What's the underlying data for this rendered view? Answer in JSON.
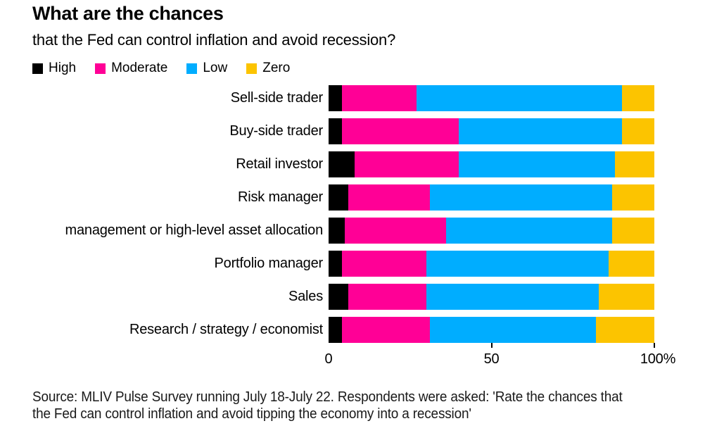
{
  "header": {
    "title": "What are the chances",
    "subtitle": "that the Fed can control inflation and avoid recession?"
  },
  "chart_data": {
    "type": "bar",
    "orientation": "horizontal",
    "stacked": true,
    "unit": "%",
    "xlim": [
      0,
      100
    ],
    "grid": false,
    "legend_position": "top",
    "x_ticks": [
      {
        "value": 0,
        "label": "0"
      },
      {
        "value": 50,
        "label": "50"
      },
      {
        "value": 100,
        "label": "100%"
      }
    ],
    "categories": [
      "Sell-side trader",
      "Buy-side trader",
      "Retail investor",
      "Risk manager",
      "management or high-level asset allocation",
      "Portfolio manager",
      "Sales",
      "Research / strategy / economist"
    ],
    "series": [
      {
        "name": "High",
        "color": "#000000",
        "values": [
          4,
          4,
          8,
          6,
          5,
          4,
          6,
          4
        ]
      },
      {
        "name": "Moderate",
        "color": "#ff0096",
        "values": [
          23,
          36,
          32,
          25,
          31,
          26,
          24,
          27
        ]
      },
      {
        "name": "Low",
        "color": "#00adff",
        "values": [
          63,
          50,
          48,
          56,
          51,
          56,
          53,
          51
        ]
      },
      {
        "name": "Zero",
        "color": "#fcc400",
        "values": [
          10,
          10,
          12,
          13,
          13,
          14,
          17,
          18
        ]
      }
    ]
  },
  "source": {
    "line1": "Source: MLIV Pulse Survey running July 18-July 22. Respondents were asked: 'Rate the chances that",
    "line2": "the Fed can control inflation and avoid tipping the economy into a recession'"
  }
}
